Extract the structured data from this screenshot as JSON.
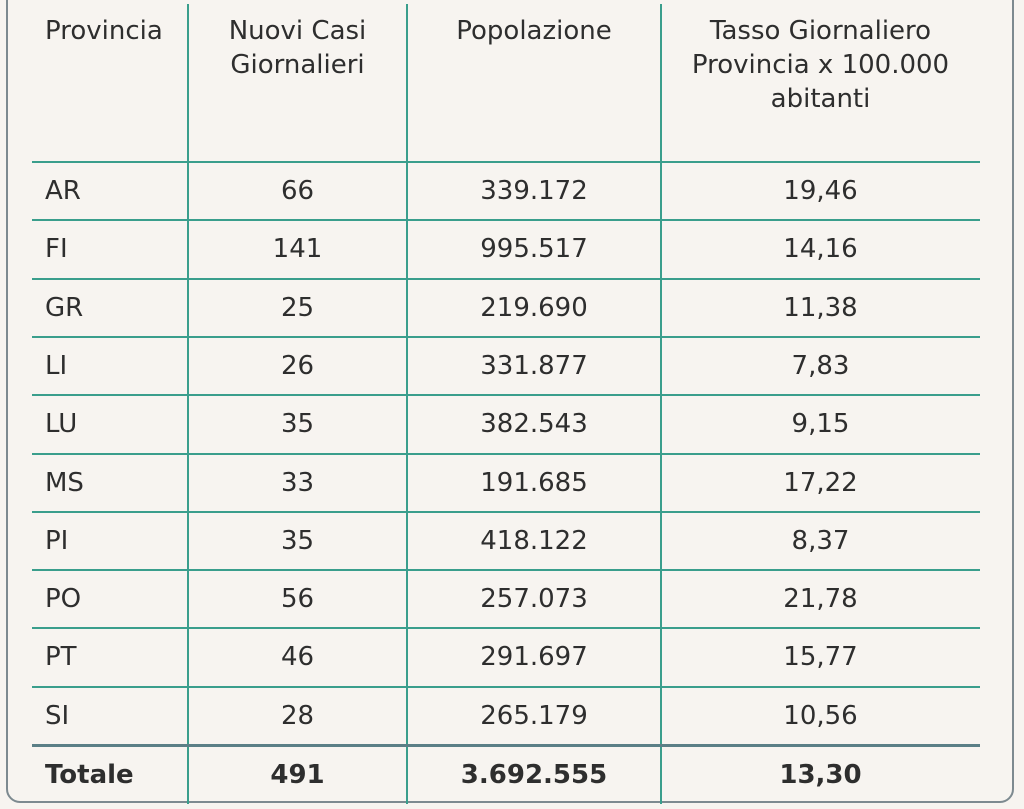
{
  "table": {
    "header": [
      [
        "Provincia"
      ],
      [
        "Nuovi Casi",
        "Giornalieri"
      ],
      [
        "Popolazione"
      ],
      [
        "Tasso Giornaliero",
        "Provincia x 100.000",
        "abitanti"
      ]
    ],
    "rows": [
      [
        "AR",
        "66",
        "339.172",
        "19,46"
      ],
      [
        "FI",
        "141",
        "995.517",
        "14,16"
      ],
      [
        "GR",
        "25",
        "219.690",
        "11,38"
      ],
      [
        "LI",
        "26",
        "331.877",
        "7,83"
      ],
      [
        "LU",
        "35",
        "382.543",
        "9,15"
      ],
      [
        "MS",
        "33",
        "191.685",
        "17,22"
      ],
      [
        "PI",
        "35",
        "418.122",
        "8,37"
      ],
      [
        "PO",
        "56",
        "257.073",
        "21,78"
      ],
      [
        "PT",
        "46",
        "291.697",
        "15,77"
      ],
      [
        "SI",
        "28",
        "265.179",
        "10,56"
      ]
    ],
    "total": [
      "Totale",
      "491",
      "3.692.555",
      "13,30"
    ]
  }
}
